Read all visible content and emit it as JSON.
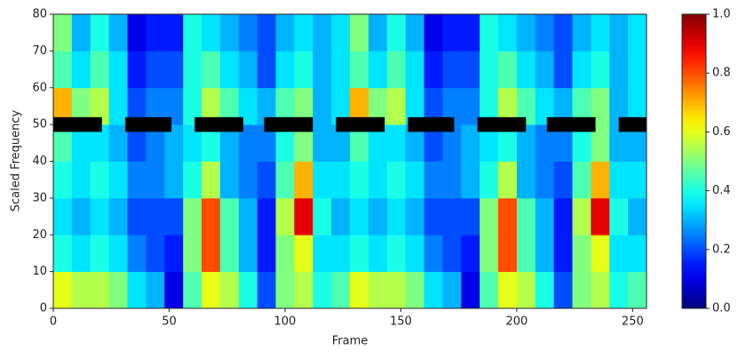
{
  "chart_data": {
    "type": "heatmap",
    "xlabel": "Frame",
    "ylabel": "Scaled Frequency",
    "xlim": [
      0,
      256
    ],
    "ylim": [
      0,
      80
    ],
    "xticks": [
      0,
      50,
      100,
      150,
      200,
      250
    ],
    "yticks": [
      0,
      10,
      20,
      30,
      40,
      50,
      60,
      70,
      80
    ],
    "x_edges": [
      0,
      8,
      16,
      24,
      32,
      40,
      48,
      56,
      64,
      72,
      80,
      88,
      96,
      104,
      112,
      120,
      128,
      136,
      144,
      152,
      160,
      168,
      176,
      184,
      192,
      200,
      208,
      216,
      224,
      232,
      240,
      248,
      256
    ],
    "y_edges": [
      0,
      10,
      20,
      30,
      40,
      50,
      60,
      70,
      80
    ],
    "z": [
      [
        0.6,
        0.55,
        0.55,
        0.5,
        0.35,
        0.3,
        0.1,
        0.45,
        0.6,
        0.55,
        0.4,
        0.2,
        0.5,
        0.55,
        0.4,
        0.45,
        0.6,
        0.55,
        0.55,
        0.5,
        0.35,
        0.3,
        0.1,
        0.45,
        0.6,
        0.55,
        0.4,
        0.2,
        0.5,
        0.55,
        0.4,
        0.45
      ],
      [
        0.4,
        0.35,
        0.4,
        0.35,
        0.25,
        0.2,
        0.15,
        0.5,
        0.8,
        0.45,
        0.3,
        0.15,
        0.5,
        0.6,
        0.35,
        0.35,
        0.4,
        0.35,
        0.4,
        0.35,
        0.25,
        0.2,
        0.15,
        0.5,
        0.8,
        0.45,
        0.3,
        0.15,
        0.5,
        0.6,
        0.35,
        0.35
      ],
      [
        0.35,
        0.3,
        0.35,
        0.3,
        0.2,
        0.2,
        0.2,
        0.5,
        0.8,
        0.45,
        0.3,
        0.15,
        0.55,
        0.9,
        0.4,
        0.3,
        0.35,
        0.3,
        0.35,
        0.3,
        0.2,
        0.2,
        0.2,
        0.5,
        0.8,
        0.45,
        0.3,
        0.15,
        0.55,
        0.9,
        0.4,
        0.3
      ],
      [
        0.4,
        0.35,
        0.4,
        0.35,
        0.25,
        0.25,
        0.3,
        0.4,
        0.55,
        0.3,
        0.25,
        0.2,
        0.45,
        0.7,
        0.35,
        0.35,
        0.4,
        0.35,
        0.4,
        0.35,
        0.25,
        0.25,
        0.3,
        0.4,
        0.55,
        0.3,
        0.25,
        0.2,
        0.45,
        0.7,
        0.35,
        0.35
      ],
      [
        0.45,
        0.35,
        0.35,
        0.3,
        0.2,
        0.25,
        0.3,
        0.35,
        0.4,
        0.3,
        0.25,
        0.25,
        0.4,
        0.5,
        0.3,
        0.3,
        0.45,
        0.35,
        0.35,
        0.3,
        0.2,
        0.25,
        0.3,
        0.35,
        0.4,
        0.3,
        0.25,
        0.25,
        0.4,
        0.5,
        0.3,
        0.3
      ],
      [
        0.7,
        0.5,
        0.55,
        0.35,
        0.2,
        0.25,
        0.25,
        0.4,
        0.55,
        0.45,
        0.35,
        0.3,
        0.45,
        0.5,
        0.3,
        0.35,
        0.7,
        0.5,
        0.55,
        0.35,
        0.2,
        0.25,
        0.25,
        0.4,
        0.55,
        0.45,
        0.35,
        0.3,
        0.45,
        0.5,
        0.3,
        0.35
      ],
      [
        0.45,
        0.35,
        0.45,
        0.35,
        0.15,
        0.2,
        0.2,
        0.4,
        0.45,
        0.35,
        0.3,
        0.2,
        0.35,
        0.4,
        0.3,
        0.35,
        0.45,
        0.35,
        0.45,
        0.35,
        0.15,
        0.2,
        0.2,
        0.4,
        0.45,
        0.35,
        0.3,
        0.2,
        0.35,
        0.4,
        0.3,
        0.35
      ],
      [
        0.5,
        0.3,
        0.4,
        0.3,
        0.1,
        0.15,
        0.15,
        0.4,
        0.35,
        0.3,
        0.25,
        0.2,
        0.3,
        0.35,
        0.3,
        0.35,
        0.5,
        0.3,
        0.4,
        0.3,
        0.1,
        0.15,
        0.15,
        0.4,
        0.35,
        0.3,
        0.25,
        0.2,
        0.3,
        0.35,
        0.3,
        0.35
      ]
    ],
    "mask_segments": [
      [
        0,
        21
      ],
      [
        31,
        51
      ],
      [
        61,
        82
      ],
      [
        91,
        112
      ],
      [
        122,
        143
      ],
      [
        153,
        173
      ],
      [
        183,
        204
      ],
      [
        213,
        234
      ],
      [
        244,
        256
      ]
    ],
    "mask_y": [
      48,
      52
    ],
    "mask_color": "#000000",
    "clim": [
      0,
      1
    ],
    "cticks": [
      {
        "value": 0,
        "label": "0.0"
      },
      0.2,
      0.4,
      0.6,
      0.8,
      {
        "value": 1,
        "label": "1.0"
      }
    ],
    "colormap": "jet"
  }
}
